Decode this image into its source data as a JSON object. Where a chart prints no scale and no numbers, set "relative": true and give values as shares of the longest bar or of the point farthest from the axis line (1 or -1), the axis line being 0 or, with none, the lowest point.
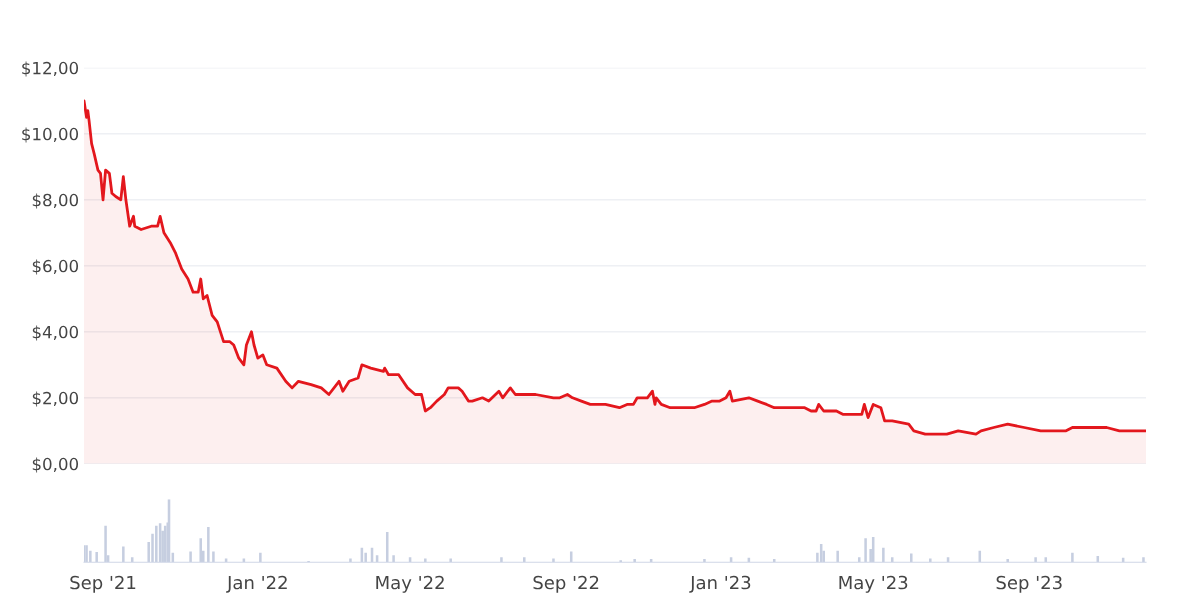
{
  "chart_data": [
    {
      "type": "area",
      "color": "#e3171d",
      "ylim": [
        0,
        12
      ],
      "yticks": [
        {
          "value": 0,
          "label": "$0,00"
        },
        {
          "value": 2,
          "label": "$2,00"
        },
        {
          "value": 4,
          "label": "$4,00"
        },
        {
          "value": 6,
          "label": "$6,00"
        },
        {
          "value": 8,
          "label": "$8,00"
        },
        {
          "value": 10,
          "label": "$10,00"
        },
        {
          "value": 12,
          "label": "$12,00"
        }
      ],
      "xlim": [
        "2021-08-17",
        "2023-12-02"
      ],
      "grid": "y",
      "tick_labels": "y",
      "x": [
        "2021-08-17",
        "2021-08-19",
        "2021-08-20",
        "2021-08-21",
        "2021-08-23",
        "2021-08-25",
        "2021-08-28",
        "2021-08-30",
        "2021-09-01",
        "2021-09-03",
        "2021-09-06",
        "2021-09-08",
        "2021-09-11",
        "2021-09-15",
        "2021-09-17",
        "2021-09-19",
        "2021-09-22",
        "2021-09-25",
        "2021-09-26",
        "2021-10-01",
        "2021-10-09",
        "2021-10-14",
        "2021-10-16",
        "2021-10-19",
        "2021-10-24",
        "2021-10-28",
        "2021-11-02",
        "2021-11-07",
        "2021-11-11",
        "2021-11-15",
        "2021-11-17",
        "2021-11-19",
        "2021-11-22",
        "2021-11-26",
        "2021-11-30",
        "2021-12-05",
        "2021-12-10",
        "2021-12-13",
        "2021-12-17",
        "2021-12-21",
        "2021-12-23",
        "2021-12-27",
        "2021-12-29",
        "2022-01-01",
        "2022-01-05",
        "2022-01-08",
        "2022-01-16",
        "2022-01-23",
        "2022-01-28",
        "2022-02-02",
        "2022-02-12",
        "2022-02-20",
        "2022-02-26",
        "2022-03-06",
        "2022-03-09",
        "2022-03-14",
        "2022-03-21",
        "2022-03-24",
        "2022-03-31",
        "2022-04-10",
        "2022-04-11",
        "2022-04-14",
        "2022-04-22",
        "2022-04-29",
        "2022-05-05",
        "2022-05-10",
        "2022-05-13",
        "2022-05-17",
        "2022-05-22",
        "2022-05-28",
        "2022-05-31",
        "2022-06-08",
        "2022-06-11",
        "2022-06-16",
        "2022-06-19",
        "2022-06-27",
        "2022-07-02",
        "2022-07-10",
        "2022-07-13",
        "2022-07-19",
        "2022-07-23",
        "2022-07-30",
        "2022-08-08",
        "2022-08-22",
        "2022-08-27",
        "2022-09-02",
        "2022-09-06",
        "2022-09-13",
        "2022-09-20",
        "2022-10-02",
        "2022-10-13",
        "2022-10-19",
        "2022-10-24",
        "2022-10-27",
        "2022-11-04",
        "2022-11-08",
        "2022-11-10",
        "2022-11-11",
        "2022-11-15",
        "2022-11-22",
        "2022-12-11",
        "2022-12-19",
        "2022-12-25",
        "2022-12-31",
        "2023-01-05",
        "2023-01-08",
        "2023-01-10",
        "2023-01-23",
        "2023-01-30",
        "2023-02-06",
        "2023-02-12",
        "2023-03-08",
        "2023-03-13",
        "2023-03-17",
        "2023-03-19",
        "2023-03-23",
        "2023-04-02",
        "2023-04-07",
        "2023-04-22",
        "2023-04-24",
        "2023-04-27",
        "2023-05-01",
        "2023-05-07",
        "2023-05-10",
        "2023-05-16",
        "2023-05-29",
        "2023-06-02",
        "2023-06-11",
        "2023-06-28",
        "2023-07-07",
        "2023-07-21",
        "2023-07-25",
        "2023-08-04",
        "2023-08-15",
        "2023-08-28",
        "2023-09-10",
        "2023-09-30",
        "2023-10-05",
        "2023-10-12",
        "2023-11-01",
        "2023-11-11",
        "2023-11-21",
        "2023-12-02"
      ],
      "values": [
        11.0,
        10.5,
        10.7,
        10.4,
        9.7,
        9.4,
        8.9,
        8.8,
        8.0,
        8.9,
        8.8,
        8.2,
        8.1,
        8.0,
        8.7,
        8.0,
        7.2,
        7.5,
        7.2,
        7.1,
        7.2,
        7.2,
        7.5,
        7.0,
        6.7,
        6.4,
        5.9,
        5.6,
        5.2,
        5.2,
        5.6,
        5.0,
        5.1,
        4.5,
        4.3,
        3.7,
        3.7,
        3.6,
        3.2,
        3.0,
        3.6,
        4.0,
        3.6,
        3.2,
        3.3,
        3.0,
        2.9,
        2.5,
        2.3,
        2.5,
        2.4,
        2.3,
        2.1,
        2.5,
        2.2,
        2.5,
        2.6,
        3.0,
        2.9,
        2.8,
        2.9,
        2.7,
        2.7,
        2.3,
        2.1,
        2.1,
        1.6,
        1.7,
        1.9,
        2.1,
        2.3,
        2.3,
        2.2,
        1.9,
        1.9,
        2.0,
        1.9,
        2.2,
        2.0,
        2.3,
        2.1,
        2.1,
        2.1,
        2.0,
        2.0,
        2.1,
        2.0,
        1.9,
        1.8,
        1.8,
        1.7,
        1.8,
        1.8,
        2.0,
        2.0,
        2.2,
        1.8,
        2.0,
        1.8,
        1.7,
        1.7,
        1.8,
        1.9,
        1.9,
        2.0,
        2.2,
        1.9,
        2.0,
        1.9,
        1.8,
        1.7,
        1.7,
        1.6,
        1.6,
        1.8,
        1.6,
        1.6,
        1.5,
        1.5,
        1.8,
        1.4,
        1.8,
        1.7,
        1.3,
        1.3,
        1.2,
        1.0,
        0.9,
        0.9,
        1.0,
        0.9,
        1.0,
        1.1,
        1.2,
        1.1,
        1.0,
        1.0,
        1.1,
        1.1,
        1.1,
        1.0,
        1.0,
        1.0
      ]
    },
    {
      "type": "bar",
      "relative": true,
      "color": "#c6cee0",
      "xlim": [
        "2021-08-17",
        "2023-12-02"
      ],
      "tick_labels": "x",
      "xticks": [
        {
          "value": "2021-09-01",
          "label": "Sep '21"
        },
        {
          "value": "2022-01-01",
          "label": "Jan '22"
        },
        {
          "value": "2022-05-01",
          "label": "May '22"
        },
        {
          "value": "2022-09-01",
          "label": "Sep '22"
        },
        {
          "value": "2023-01-01",
          "label": "Jan '23"
        },
        {
          "value": "2023-05-01",
          "label": "May '23"
        },
        {
          "value": "2023-09-01",
          "label": "Sep '23"
        }
      ],
      "x": [
        "2021-08-17",
        "2021-08-19",
        "2021-08-22",
        "2021-08-27",
        "2021-09-03",
        "2021-09-05",
        "2021-09-17",
        "2021-09-24",
        "2021-10-07",
        "2021-10-10",
        "2021-10-13",
        "2021-10-16",
        "2021-10-18",
        "2021-10-20",
        "2021-10-22",
        "2021-10-23",
        "2021-10-26",
        "2021-11-09",
        "2021-11-17",
        "2021-11-19",
        "2021-11-23",
        "2021-11-27",
        "2021-12-07",
        "2021-12-21",
        "2022-01-03",
        "2022-02-10",
        "2022-03-15",
        "2022-03-24",
        "2022-03-27",
        "2022-04-01",
        "2022-04-05",
        "2022-04-13",
        "2022-04-18",
        "2022-05-01",
        "2022-05-13",
        "2022-06-02",
        "2022-07-12",
        "2022-07-30",
        "2022-08-22",
        "2022-09-05",
        "2022-10-14",
        "2022-10-25",
        "2022-11-07",
        "2022-12-19",
        "2023-01-09",
        "2023-01-23",
        "2023-02-12",
        "2023-03-18",
        "2023-03-21",
        "2023-03-23",
        "2023-04-03",
        "2023-04-20",
        "2023-04-25",
        "2023-04-29",
        "2023-05-01",
        "2023-05-09",
        "2023-05-16",
        "2023-05-31",
        "2023-06-15",
        "2023-06-29",
        "2023-07-24",
        "2023-08-15",
        "2023-09-06",
        "2023-09-14",
        "2023-10-05",
        "2023-10-25",
        "2023-11-14",
        "2023-11-30"
      ],
      "values": [
        0.27,
        0.27,
        0.18,
        0.16,
        0.58,
        0.11,
        0.25,
        0.08,
        0.32,
        0.45,
        0.58,
        0.62,
        0.5,
        0.58,
        0.63,
        1.0,
        0.15,
        0.17,
        0.38,
        0.18,
        0.56,
        0.17,
        0.06,
        0.06,
        0.15,
        0.02,
        0.06,
        0.23,
        0.15,
        0.23,
        0.11,
        0.48,
        0.11,
        0.08,
        0.06,
        0.06,
        0.08,
        0.08,
        0.06,
        0.17,
        0.03,
        0.05,
        0.05,
        0.05,
        0.08,
        0.07,
        0.05,
        0.15,
        0.29,
        0.18,
        0.18,
        0.08,
        0.38,
        0.21,
        0.4,
        0.23,
        0.08,
        0.14,
        0.06,
        0.08,
        0.18,
        0.05,
        0.08,
        0.08,
        0.15,
        0.1,
        0.07,
        0.08
      ]
    }
  ]
}
